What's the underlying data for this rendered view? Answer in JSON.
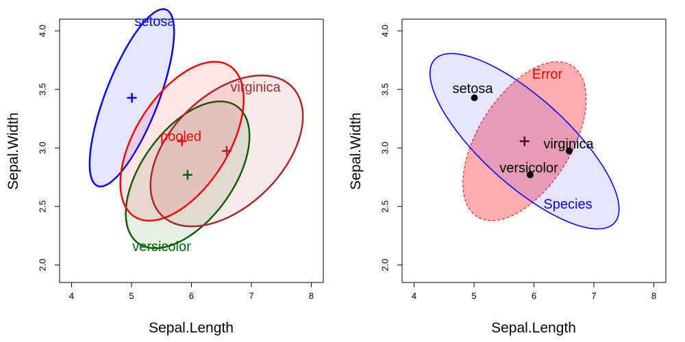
{
  "chart_data": [
    {
      "type": "scatter",
      "xlabel": "Sepal.Length",
      "ylabel": "Sepal.Width",
      "xlim": [
        3.8,
        8.2
      ],
      "ylim": [
        1.85,
        4.1
      ],
      "xticks": [
        "4",
        "5",
        "6",
        "7",
        "8"
      ],
      "yticks": [
        "2.0",
        "2.5",
        "3.0",
        "3.5",
        "4.0"
      ],
      "groups": [
        {
          "name": "setosa",
          "color": "#0000ff",
          "fill": "rgba(0,0,255,0.10)",
          "center": [
            5.006,
            3.428
          ],
          "cov": [
            [
              0.1242,
              0.0992
            ],
            [
              0.0992,
              0.1437
            ]
          ],
          "label": "setosa"
        },
        {
          "name": "versicolor",
          "color": "#006400",
          "fill": "rgba(0,100,0,0.10)",
          "center": [
            5.936,
            2.77
          ],
          "cov": [
            [
              0.2664,
              0.0852
            ],
            [
              0.0852,
              0.0985
            ]
          ],
          "label": "versicolor"
        },
        {
          "name": "virginica",
          "color": "#a52a2a",
          "fill": "rgba(165,42,42,0.10)",
          "center": [
            6.588,
            2.974
          ],
          "cov": [
            [
              0.4043,
              0.0938
            ],
            [
              0.0938,
              0.104
            ]
          ],
          "label": "virginica"
        },
        {
          "name": "pooled",
          "color": "#ff0000",
          "fill": "rgba(255,0,0,0.10)",
          "center": [
            5.843,
            3.057
          ],
          "cov": [
            [
              0.265,
              0.0927
            ],
            [
              0.0927,
              0.1154
            ]
          ],
          "label": "pooled"
        }
      ]
    },
    {
      "type": "scatter",
      "xlabel": "Sepal.Length",
      "ylabel": "Sepal.Width",
      "xlim": [
        3.8,
        8.2
      ],
      "ylim": [
        1.85,
        4.1
      ],
      "xticks": [
        "4",
        "5",
        "6",
        "7",
        "8"
      ],
      "yticks": [
        "2.0",
        "2.5",
        "3.0",
        "3.5",
        "4.0"
      ],
      "error_ellipse": {
        "name": "Error",
        "color": "#ff0000",
        "fill": "rgba(255,0,0,0.32)",
        "center": [
          5.843,
          3.057
        ],
        "cov": [
          [
            0.265,
            0.0927
          ],
          [
            0.0927,
            0.1154
          ]
        ]
      },
      "species_ellipse": {
        "name": "Species",
        "color": "#0000ff",
        "fill": "rgba(0,0,255,0.10)",
        "center": [
          5.843,
          3.057
        ],
        "cov": [
          [
            0.6226,
            -0.2288
          ],
          [
            -0.2288,
            0.1405
          ]
        ]
      },
      "centroid": [
        5.843,
        3.057
      ],
      "points": [
        {
          "name": "setosa",
          "x": 5.006,
          "y": 3.428
        },
        {
          "name": "versicolor",
          "x": 5.936,
          "y": 2.77
        },
        {
          "name": "virginica",
          "x": 6.588,
          "y": 2.974
        }
      ]
    }
  ]
}
